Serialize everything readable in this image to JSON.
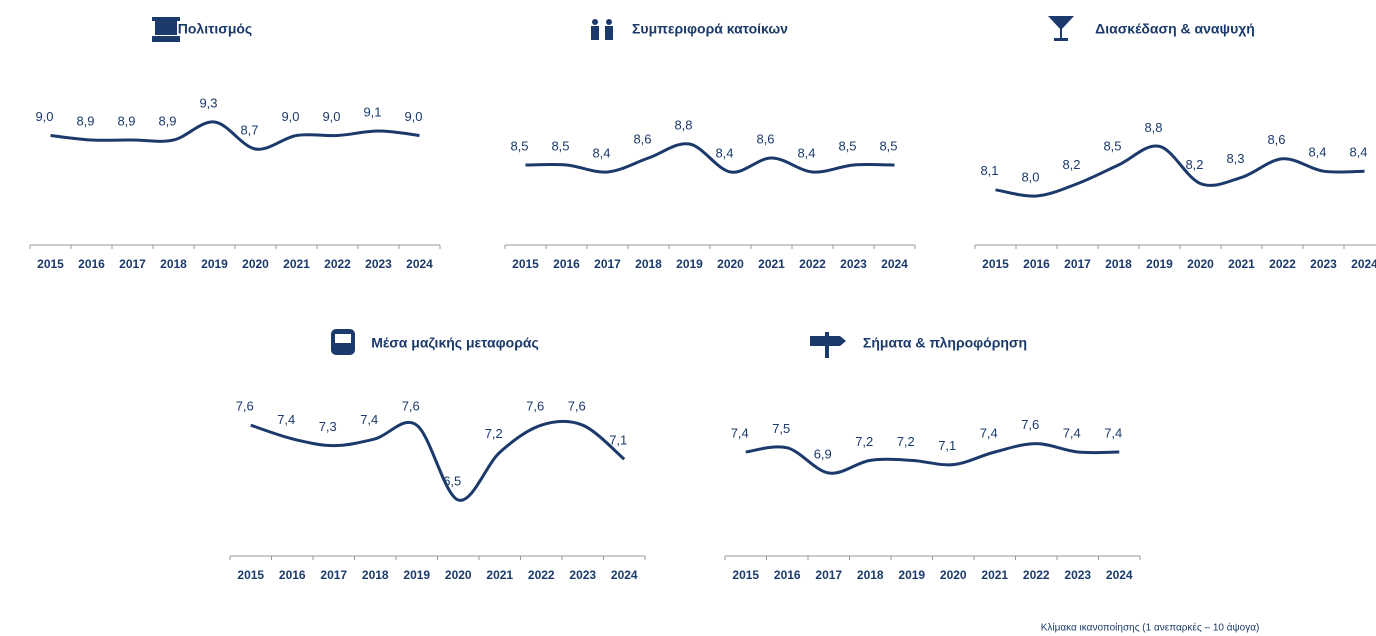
{
  "chart_data": [
    {
      "type": "line",
      "title": "Πολιτισμός",
      "categories": [
        "2015",
        "2016",
        "2017",
        "2018",
        "2019",
        "2020",
        "2021",
        "2022",
        "2023",
        "2024"
      ],
      "color": "#1b3a6b",
      "values": [
        9.0,
        8.9,
        8.9,
        8.9,
        9.3,
        8.7,
        9.0,
        9.0,
        9.1,
        9.0
      ],
      "value_labels": [
        "9,0",
        "8,9",
        "8,9",
        "8,9",
        "9,3",
        "8,7",
        "9,0",
        "9,0",
        "9,1",
        "9,0"
      ]
    },
    {
      "type": "line",
      "title": "Συμπεριφορά κατοίκων",
      "categories": [
        "2015",
        "2016",
        "2017",
        "2018",
        "2019",
        "2020",
        "2021",
        "2022",
        "2023",
        "2024"
      ],
      "color": "#1b3a6b",
      "values": [
        8.5,
        8.5,
        8.4,
        8.6,
        8.8,
        8.4,
        8.6,
        8.4,
        8.5,
        8.5
      ],
      "value_labels": [
        "8,5",
        "8,5",
        "8,4",
        "8,6",
        "8,8",
        "8,4",
        "8,6",
        "8,4",
        "8,5",
        "8,5"
      ]
    },
    {
      "type": "line",
      "title": "Διασκέδαση & αναψυχή",
      "categories": [
        "2015",
        "2016",
        "2017",
        "2018",
        "2019",
        "2020",
        "2021",
        "2022",
        "2023",
        "2024"
      ],
      "color": "#1b3a6b",
      "values": [
        8.1,
        8.0,
        8.2,
        8.5,
        8.8,
        8.2,
        8.3,
        8.6,
        8.4,
        8.4
      ],
      "value_labels": [
        "8,1",
        "8,0",
        "8,2",
        "8,5",
        "8,8",
        "8,2",
        "8,3",
        "8,6",
        "8,4",
        "8,4"
      ]
    },
    {
      "type": "line",
      "title": "Μέσα μαζικής μεταφοράς",
      "categories": [
        "2015",
        "2016",
        "2017",
        "2018",
        "2019",
        "2020",
        "2021",
        "2022",
        "2023",
        "2024"
      ],
      "color": "#1b3a6b",
      "values": [
        7.6,
        7.4,
        7.3,
        7.4,
        7.6,
        6.5,
        7.2,
        7.6,
        7.6,
        7.1
      ],
      "value_labels": [
        "7,6",
        "7,4",
        "7,3",
        "7,4",
        "7,6",
        "6,5",
        "7,2",
        "7,6",
        "7,6",
        "7,1"
      ]
    },
    {
      "type": "line",
      "title": "Σήματα & πληροφόρηση",
      "categories": [
        "2015",
        "2016",
        "2017",
        "2018",
        "2019",
        "2020",
        "2021",
        "2022",
        "2023",
        "2024"
      ],
      "color": "#1b3a6b",
      "values": [
        7.4,
        7.5,
        6.9,
        7.2,
        7.2,
        7.1,
        7.4,
        7.6,
        7.4,
        7.4
      ],
      "value_labels": [
        "7,4",
        "7,5",
        "6,9",
        "7,2",
        "7,2",
        "7,1",
        "7,4",
        "7,6",
        "7,4",
        "7,4"
      ]
    }
  ],
  "note": "Κλίμακα ικανοποίησης (1 ανεπαρκές – 10 άψογα)"
}
